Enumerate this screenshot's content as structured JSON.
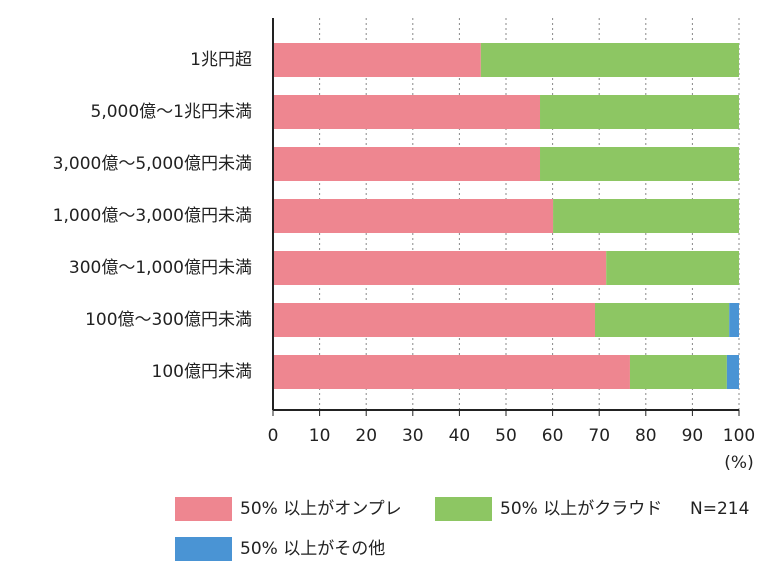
{
  "chart_data": {
    "type": "stacked_barh",
    "categories": [
      "1兆円超",
      "5,000億～1兆円未満",
      "3,000億～5,000億円未満",
      "1,000億～3,000億円未満",
      "300億～1,000億円未満",
      "100億～300億円未満",
      "100億円未満"
    ],
    "series": [
      {
        "name": "50% 以上がオンプレ",
        "color": "#ee8690",
        "values": [
          44.6,
          57.3,
          57.3,
          60.1,
          71.5,
          69.1,
          76.6
        ]
      },
      {
        "name": "50% 以上がクラウド",
        "color": "#8dc663",
        "values": [
          55.4,
          42.7,
          42.7,
          39.9,
          28.5,
          28.8,
          20.8
        ]
      },
      {
        "name": "50% 以上がその他",
        "color": "#4a94d4",
        "values": [
          0,
          0,
          0,
          0,
          0,
          2.1,
          2.6
        ]
      }
    ],
    "xlim": [
      0,
      100
    ],
    "xticks": [
      0,
      10,
      20,
      30,
      40,
      50,
      60,
      70,
      80,
      90,
      100
    ],
    "x_label": "(%)",
    "annotation": "N=214",
    "grid": true
  }
}
